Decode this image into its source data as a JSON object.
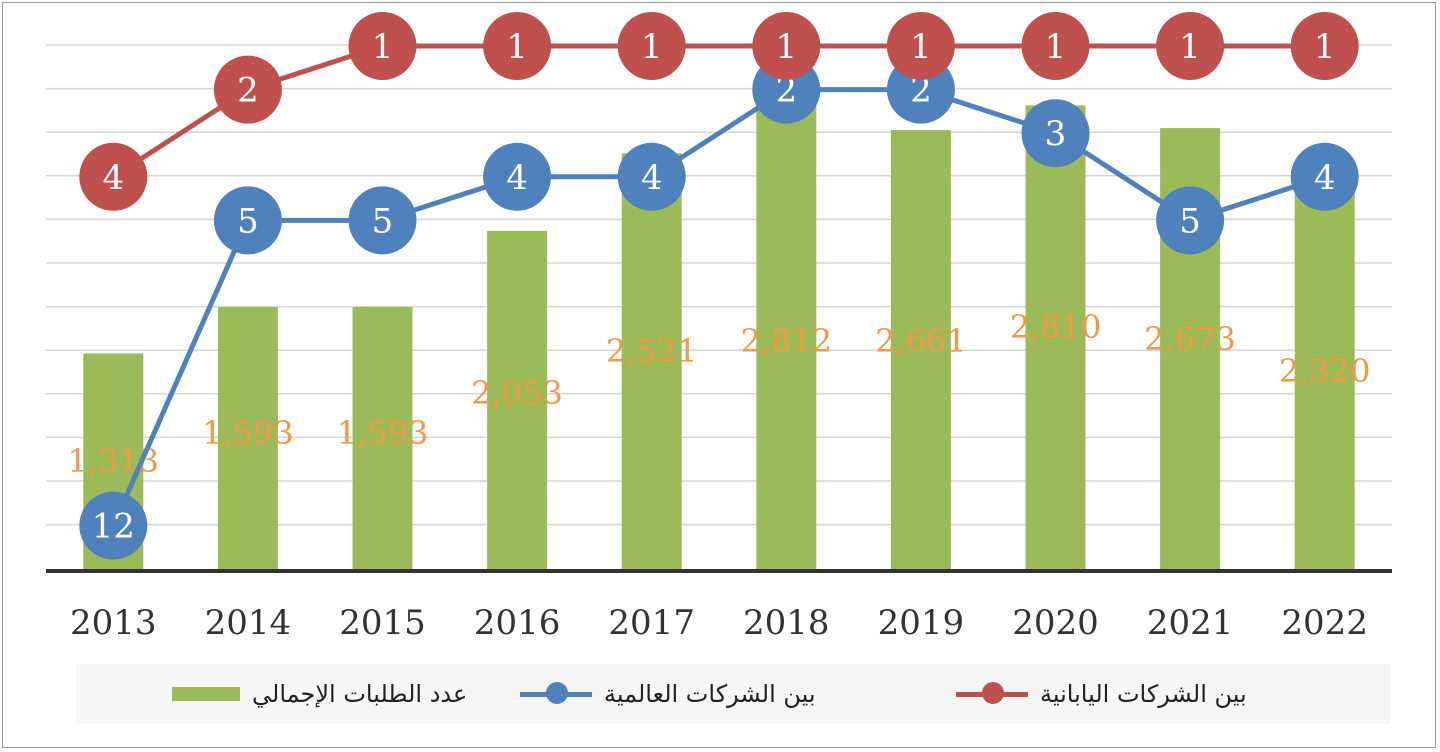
{
  "chart_data": {
    "type": "bar",
    "categories": [
      "2013",
      "2014",
      "2015",
      "2016",
      "2017",
      "2018",
      "2019",
      "2020",
      "2021",
      "2022"
    ],
    "series": [
      {
        "name": "عدد الطلبات الإجمالي",
        "kind": "bar",
        "color": "#9bbb59",
        "values": [
          1313,
          1593,
          1593,
          2053,
          2521,
          2812,
          2661,
          2810,
          2673,
          2320
        ],
        "labels": [
          "1,313",
          "1,593",
          "1,593",
          "2,053",
          "2,521",
          "2,812",
          "2,661",
          "2,810",
          "2,673",
          "2,320"
        ]
      },
      {
        "name": "بين الشركات العالمية",
        "kind": "line-rank",
        "color": "#4f81bd",
        "values": [
          12,
          5,
          5,
          4,
          4,
          2,
          2,
          3,
          5,
          4
        ]
      },
      {
        "name": "بين الشركات اليابانية",
        "kind": "line-rank",
        "color": "#c0504d",
        "values": [
          4,
          2,
          1,
          1,
          1,
          1,
          1,
          1,
          1,
          1
        ]
      }
    ],
    "label_color": "#f79646",
    "grid": true,
    "legend_position": "bottom"
  },
  "legend": {
    "total_label": "عدد الطلبات الإجمالي",
    "global_label": "بين الشركات العالمية",
    "japan_label": "بين الشركات اليابانية"
  }
}
